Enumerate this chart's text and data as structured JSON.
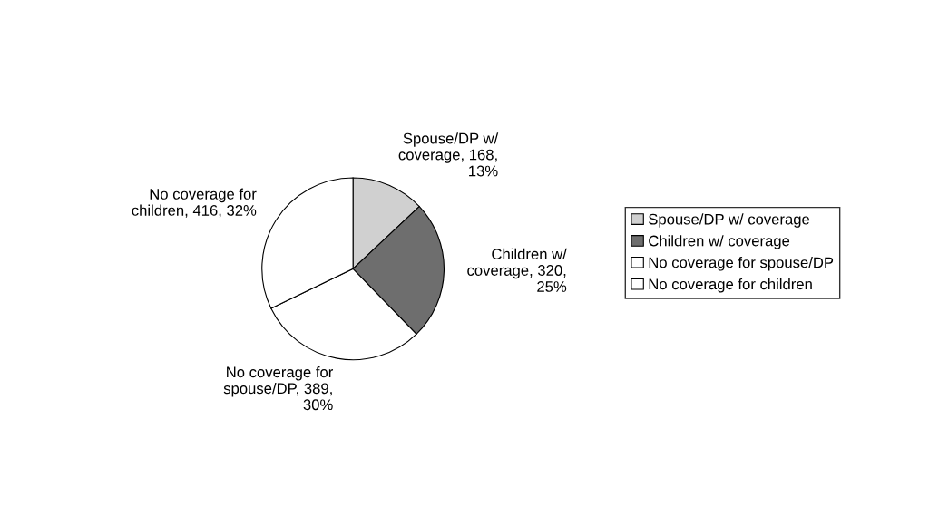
{
  "chart_data": {
    "type": "pie",
    "categories": [
      "Spouse/DP w/ coverage",
      "Children w/ coverage",
      "No coverage for spouse/DP",
      "No coverage for children"
    ],
    "values": [
      168,
      320,
      389,
      416
    ],
    "colors": [
      "#d0d0d0",
      "#6e6e6e",
      "#ffffff",
      "#ffffff"
    ],
    "value_labels": [
      "Spouse/DP w/\ncoverage, 168,\n13%",
      "Children w/\ncoverage, 320,\n25%",
      "No coverage for\nspouse/DP, 389,\n30%",
      "No coverage for\nchildren, 416, 32%"
    ],
    "legend": "right"
  }
}
